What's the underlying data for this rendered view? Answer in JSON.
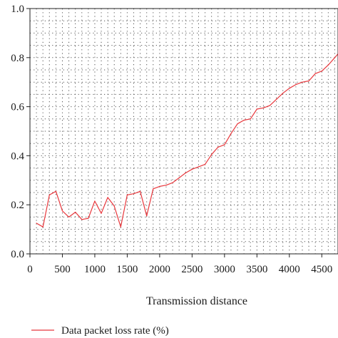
{
  "chart_data": {
    "type": "line",
    "xlabel": "Transmission distance",
    "ylabel": "",
    "xlim": [
      0,
      4750
    ],
    "ylim": [
      0,
      1.0
    ],
    "x_ticks": [
      0,
      500,
      1000,
      1500,
      2000,
      2500,
      3000,
      3500,
      4000,
      4500
    ],
    "x_tick_labels": [
      "0",
      "500",
      "1000",
      "1500",
      "2000",
      "2500",
      "3000",
      "3500",
      "4000",
      "4500"
    ],
    "y_ticks": [
      0,
      0.2,
      0.4,
      0.6,
      0.8,
      1.0
    ],
    "y_tick_labels": [
      "0.0",
      "0.2",
      "0.4",
      "0.6",
      "0.8",
      "1.0"
    ],
    "grid": true,
    "legend_position": "bottom-left",
    "series": [
      {
        "name": "Data packet loss rate (%)",
        "color": "#e8383d",
        "x": [
          100,
          200,
          300,
          400,
          500,
          600,
          700,
          800,
          900,
          1000,
          1100,
          1200,
          1300,
          1400,
          1500,
          1600,
          1700,
          1800,
          1900,
          2000,
          2100,
          2200,
          2300,
          2400,
          2500,
          2600,
          2700,
          2800,
          2900,
          3000,
          3100,
          3200,
          3300,
          3400,
          3500,
          3600,
          3700,
          3800,
          3900,
          4000,
          4100,
          4200,
          4300,
          4400,
          4500,
          4600,
          4700,
          4750
        ],
        "y": [
          0.125,
          0.11,
          0.24,
          0.255,
          0.175,
          0.15,
          0.17,
          0.14,
          0.145,
          0.215,
          0.165,
          0.23,
          0.195,
          0.11,
          0.24,
          0.245,
          0.255,
          0.155,
          0.265,
          0.275,
          0.28,
          0.29,
          0.31,
          0.33,
          0.345,
          0.355,
          0.365,
          0.405,
          0.435,
          0.445,
          0.49,
          0.53,
          0.545,
          0.55,
          0.59,
          0.595,
          0.605,
          0.63,
          0.655,
          0.675,
          0.69,
          0.7,
          0.705,
          0.735,
          0.745,
          0.77,
          0.8,
          0.815
        ]
      }
    ]
  }
}
